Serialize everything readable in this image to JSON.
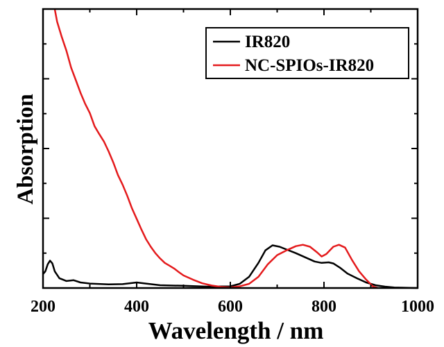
{
  "chart_data": {
    "type": "line",
    "title": "",
    "xlabel": "Wavelength / nm",
    "ylabel": "Absorption",
    "xlim": [
      200,
      1000
    ],
    "ylim": [
      0,
      1.0
    ],
    "x_ticks": [
      200,
      400,
      600,
      800,
      1000
    ],
    "y_ticks_labeled": false,
    "grid": false,
    "legend_position": "top-right",
    "series": [
      {
        "name": "IR820",
        "color": "#000000",
        "points": [
          [
            200,
            0.05
          ],
          [
            205,
            0.06
          ],
          [
            210,
            0.085
          ],
          [
            215,
            0.098
          ],
          [
            220,
            0.088
          ],
          [
            225,
            0.06
          ],
          [
            235,
            0.035
          ],
          [
            250,
            0.025
          ],
          [
            265,
            0.028
          ],
          [
            280,
            0.02
          ],
          [
            300,
            0.016
          ],
          [
            340,
            0.013
          ],
          [
            370,
            0.014
          ],
          [
            400,
            0.02
          ],
          [
            420,
            0.016
          ],
          [
            450,
            0.01
          ],
          [
            500,
            0.008
          ],
          [
            550,
            0.005
          ],
          [
            600,
            0.006
          ],
          [
            620,
            0.015
          ],
          [
            640,
            0.04
          ],
          [
            660,
            0.09
          ],
          [
            675,
            0.135
          ],
          [
            690,
            0.153
          ],
          [
            705,
            0.148
          ],
          [
            720,
            0.138
          ],
          [
            740,
            0.125
          ],
          [
            760,
            0.11
          ],
          [
            780,
            0.095
          ],
          [
            795,
            0.09
          ],
          [
            810,
            0.092
          ],
          [
            820,
            0.088
          ],
          [
            835,
            0.072
          ],
          [
            850,
            0.052
          ],
          [
            870,
            0.035
          ],
          [
            890,
            0.02
          ],
          [
            910,
            0.01
          ],
          [
            930,
            0.005
          ],
          [
            950,
            0.002
          ],
          [
            1000,
            0.0
          ]
        ]
      },
      {
        "name": "NC-SPIOs-IR820",
        "color": "#e41a1c",
        "points": [
          [
            225,
            1.0
          ],
          [
            230,
            0.955
          ],
          [
            240,
            0.9
          ],
          [
            250,
            0.85
          ],
          [
            260,
            0.79
          ],
          [
            270,
            0.745
          ],
          [
            280,
            0.7
          ],
          [
            290,
            0.66
          ],
          [
            300,
            0.627
          ],
          [
            310,
            0.58
          ],
          [
            320,
            0.552
          ],
          [
            330,
            0.525
          ],
          [
            340,
            0.49
          ],
          [
            350,
            0.45
          ],
          [
            360,
            0.405
          ],
          [
            370,
            0.37
          ],
          [
            380,
            0.33
          ],
          [
            390,
            0.285
          ],
          [
            400,
            0.248
          ],
          [
            410,
            0.21
          ],
          [
            420,
            0.175
          ],
          [
            430,
            0.148
          ],
          [
            440,
            0.125
          ],
          [
            450,
            0.106
          ],
          [
            460,
            0.09
          ],
          [
            470,
            0.08
          ],
          [
            480,
            0.07
          ],
          [
            490,
            0.057
          ],
          [
            500,
            0.045
          ],
          [
            520,
            0.03
          ],
          [
            540,
            0.017
          ],
          [
            560,
            0.009
          ],
          [
            580,
            0.004
          ],
          [
            600,
            0.002
          ],
          [
            620,
            0.006
          ],
          [
            640,
            0.015
          ],
          [
            660,
            0.04
          ],
          [
            680,
            0.085
          ],
          [
            700,
            0.118
          ],
          [
            720,
            0.135
          ],
          [
            740,
            0.15
          ],
          [
            755,
            0.155
          ],
          [
            770,
            0.148
          ],
          [
            785,
            0.128
          ],
          [
            795,
            0.113
          ],
          [
            805,
            0.122
          ],
          [
            820,
            0.148
          ],
          [
            832,
            0.155
          ],
          [
            845,
            0.145
          ],
          [
            860,
            0.1
          ],
          [
            875,
            0.06
          ],
          [
            890,
            0.03
          ],
          [
            905,
            0.005
          ],
          [
            915,
            0.0
          ]
        ]
      }
    ]
  }
}
